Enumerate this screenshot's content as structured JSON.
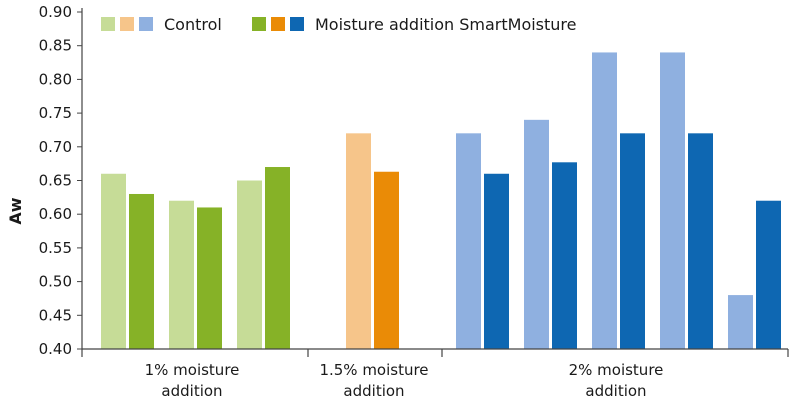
{
  "chart_data": {
    "type": "bar",
    "title": "",
    "xlabel": "",
    "ylabel": "Aw",
    "ylim": [
      0.4,
      0.9
    ],
    "yticks": [
      "0.40",
      "0.45",
      "0.50",
      "0.55",
      "0.60",
      "0.65",
      "0.70",
      "0.75",
      "0.80",
      "0.85",
      "0.90"
    ],
    "grid": false,
    "legend_position": "top-left",
    "legend": [
      {
        "label": "Control",
        "colors": [
          "#c6dc97",
          "#f6c58a",
          "#8fb0e0"
        ]
      },
      {
        "label": "Moisture addition SmartMoisture",
        "colors": [
          "#86b227",
          "#ea8b06",
          "#0e67b2"
        ]
      }
    ],
    "groups": [
      {
        "label_lines": [
          "1% moisture",
          "addition"
        ],
        "control_color": "#c6dc97",
        "moisture_color": "#86b227",
        "pairs": [
          {
            "control": 0.66,
            "moisture": 0.63
          },
          {
            "control": 0.62,
            "moisture": 0.61
          },
          {
            "control": 0.65,
            "moisture": 0.67
          }
        ]
      },
      {
        "label_lines": [
          "1.5% moisture",
          "addition"
        ],
        "control_color": "#f6c58a",
        "moisture_color": "#ea8b06",
        "pairs": [
          {
            "control": 0.72,
            "moisture": 0.663
          }
        ]
      },
      {
        "label_lines": [
          "2% moisture",
          "addition"
        ],
        "control_color": "#8fb0e0",
        "moisture_color": "#0e67b2",
        "pairs": [
          {
            "control": 0.72,
            "moisture": 0.66
          },
          {
            "control": 0.74,
            "moisture": 0.677
          },
          {
            "control": 0.84,
            "moisture": 0.72
          },
          {
            "control": 0.84,
            "moisture": 0.72
          },
          {
            "control": 0.48,
            "moisture": 0.62
          }
        ]
      }
    ]
  }
}
